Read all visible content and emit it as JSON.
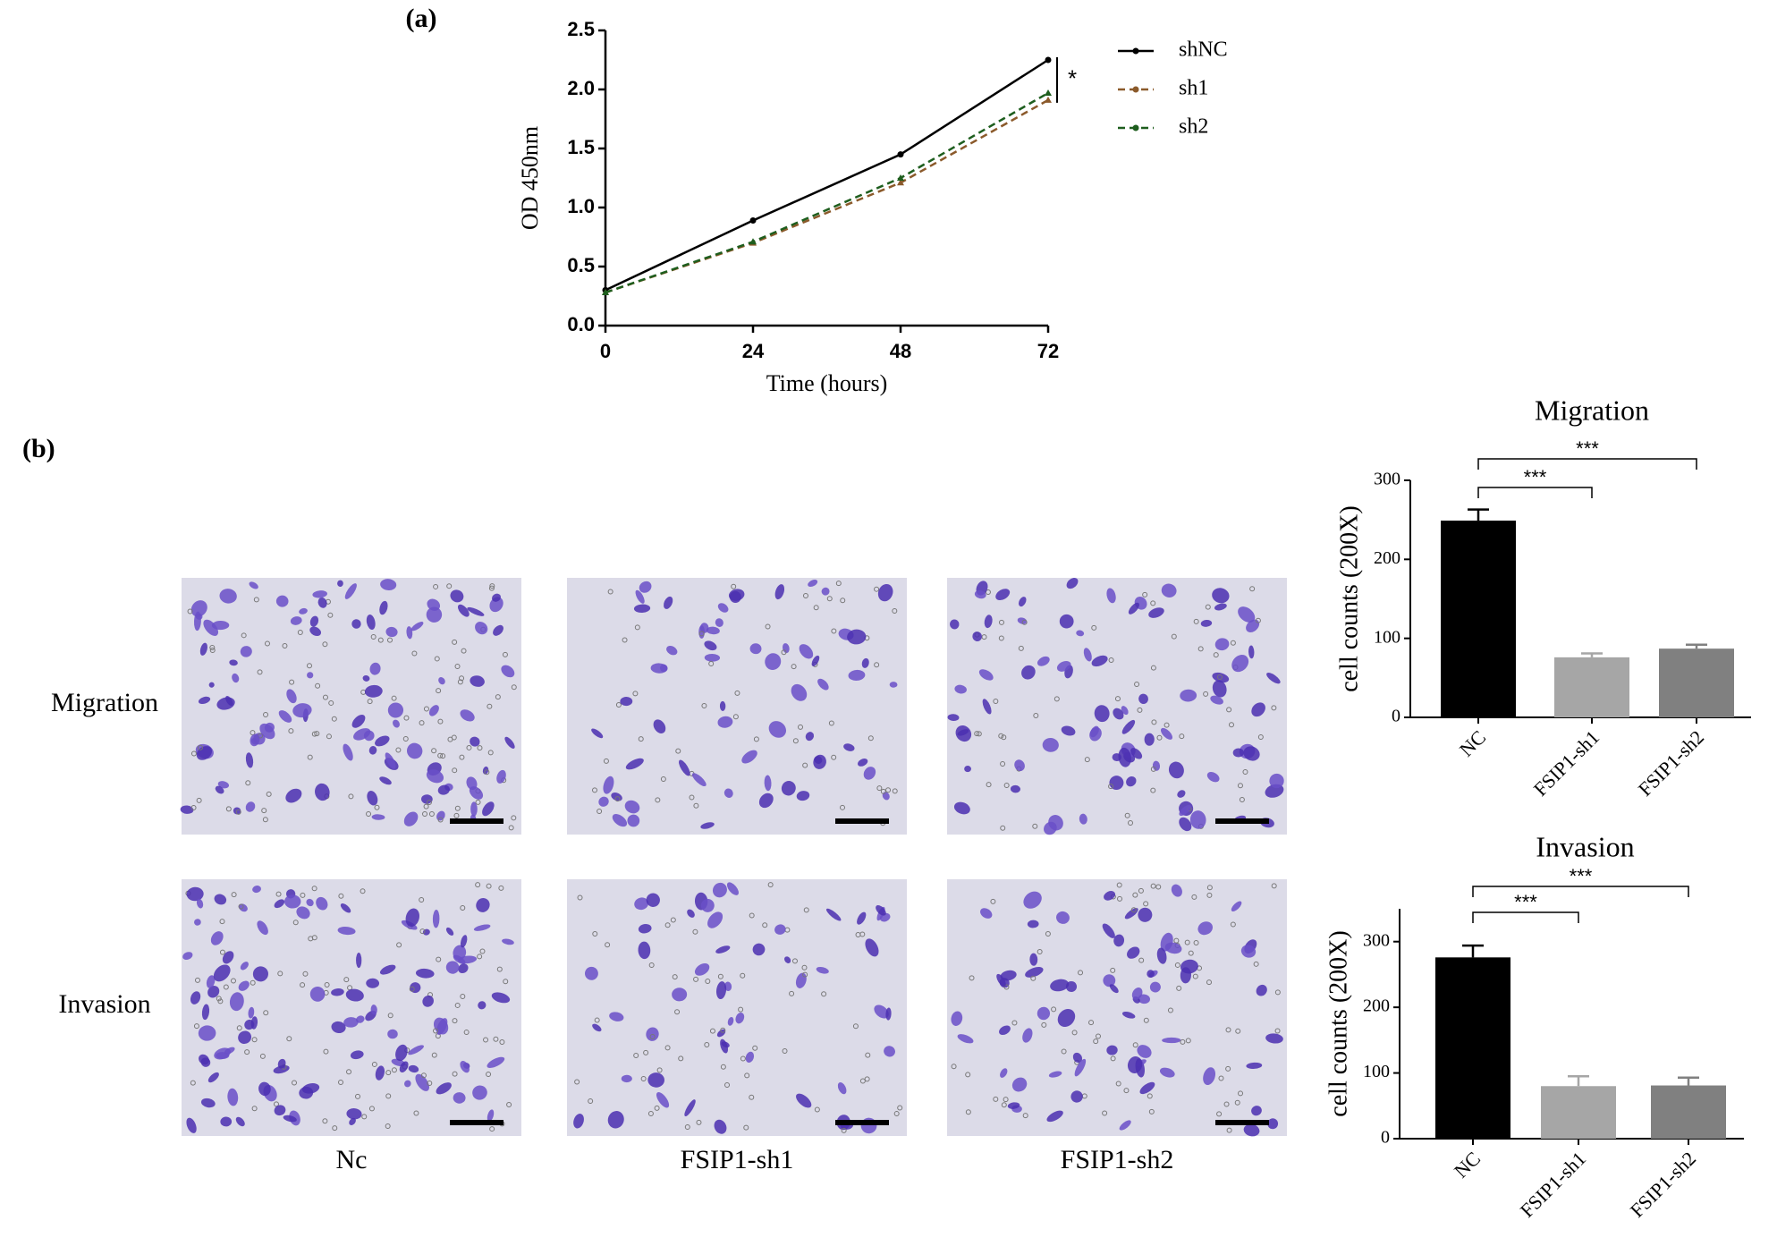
{
  "panel_labels": [
    "(a)",
    "(b)"
  ],
  "micrographs": {
    "rows": [
      "Migration",
      "Invasion"
    ],
    "columns": [
      "Nc",
      "FSIP1-sh1",
      "FSIP1-sh2"
    ]
  },
  "chart_data": [
    {
      "type": "line",
      "xlabel": "Time (hours)",
      "ylabel": "OD 450nm",
      "x": [
        0,
        24,
        48,
        72
      ],
      "xlim": [
        0,
        72
      ],
      "xticks": [
        0,
        24,
        48,
        72
      ],
      "ylim": [
        0,
        2.5
      ],
      "yticks": [
        {
          "value": 0,
          "label": "0.0"
        },
        0.5,
        {
          "value": 1,
          "label": "1.0"
        },
        1.5,
        {
          "value": 2,
          "label": "2.0"
        },
        2.5
      ],
      "series": [
        {
          "name": "shNC",
          "color": "#000000",
          "values": [
            0.3,
            0.89,
            1.45,
            2.25
          ]
        },
        {
          "name": "sh1",
          "color": "#8b5a2b",
          "values": [
            0.28,
            0.7,
            1.21,
            1.91
          ]
        },
        {
          "name": "sh2",
          "color": "#1e5e1e",
          "values": [
            0.28,
            0.71,
            1.25,
            1.97
          ]
        }
      ],
      "annotation": "*"
    },
    {
      "type": "bar",
      "title": "Migration",
      "ylabel": "cell counts (200X)",
      "categories": [
        "NC",
        "FSIP1-sh1",
        "FSIP1-sh2"
      ],
      "values": [
        249,
        76,
        87
      ],
      "errors": [
        14,
        5,
        5
      ],
      "colors": [
        "#000000",
        "#a6a6a6",
        "#808080"
      ],
      "ylim": [
        0,
        300
      ],
      "yticks": [
        0,
        100,
        200,
        300
      ],
      "annotations": [
        "***",
        "***"
      ]
    },
    {
      "type": "bar",
      "title": "Invasion",
      "ylabel": "cell counts (200X)",
      "categories": [
        "NC",
        "FSIP1-sh1",
        "FSIP1-sh2"
      ],
      "values": [
        276,
        80,
        81
      ],
      "errors": [
        18,
        15,
        12
      ],
      "colors": [
        "#000000",
        "#a6a6a6",
        "#808080"
      ],
      "ylim": [
        0,
        350
      ],
      "yticks": [
        0,
        100,
        200,
        300
      ],
      "annotations": [
        "***",
        "***"
      ]
    }
  ]
}
